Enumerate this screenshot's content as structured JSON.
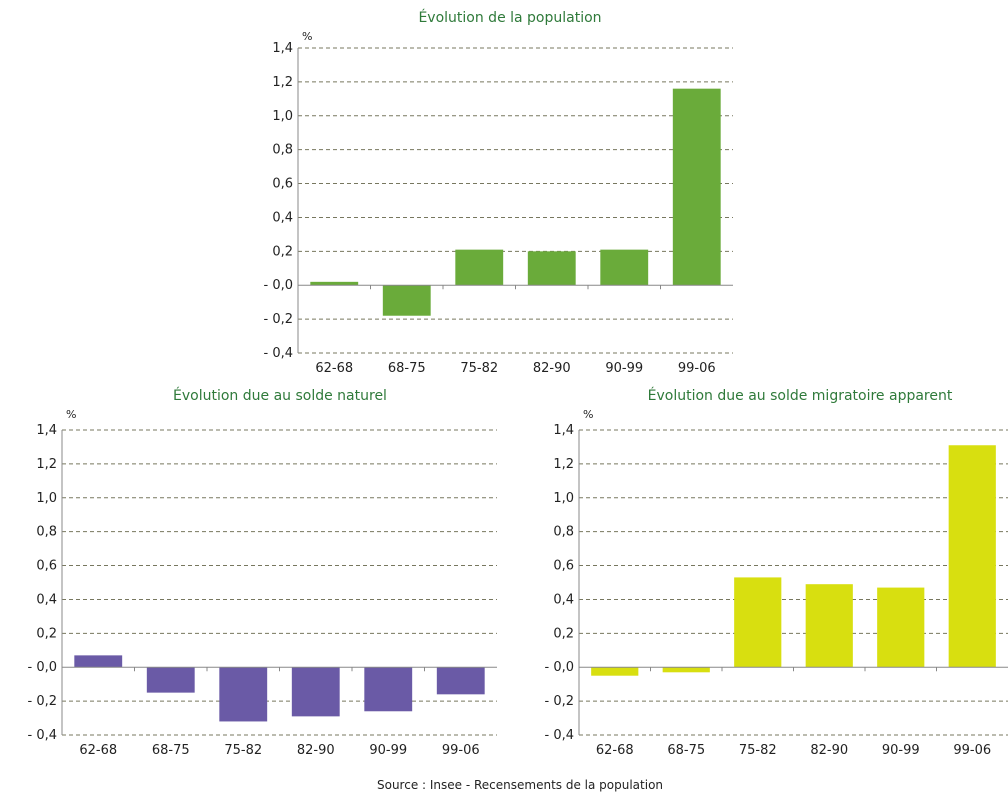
{
  "source": "Source : Insee - Recensements de la population",
  "unit_label": "%",
  "chart_data": [
    {
      "type": "bar",
      "title": "Évolution  de la population",
      "categories": [
        "62-68",
        "68-75",
        "75-82",
        "82-90",
        "90-99",
        "99-06"
      ],
      "values": [
        0.02,
        -0.18,
        0.21,
        0.2,
        0.21,
        1.16
      ],
      "ylim": [
        -0.4,
        1.4
      ],
      "ytick_labels": [
        "- 0,4",
        "- 0,2",
        "- 0,0",
        "0,2",
        "0,4",
        "0,6",
        "0,8",
        "1,0",
        "1,2",
        "1,4"
      ],
      "ylabel": "%",
      "grid": true,
      "color": "#6aab3a"
    },
    {
      "type": "bar",
      "title": "Évolution  due au solde naturel",
      "categories": [
        "62-68",
        "68-75",
        "75-82",
        "82-90",
        "90-99",
        "99-06"
      ],
      "values": [
        0.07,
        -0.15,
        -0.32,
        -0.29,
        -0.26,
        -0.16
      ],
      "ylim": [
        -0.4,
        1.4
      ],
      "ytick_labels": [
        "- 0,4",
        "- 0,2",
        "- 0,0",
        "0,2",
        "0,4",
        "0,6",
        "0,8",
        "1,0",
        "1,2",
        "1,4"
      ],
      "ylabel": "%",
      "grid": true,
      "color": "#6a5aa6"
    },
    {
      "type": "bar",
      "title": "Évolution  due au solde migratoire apparent",
      "categories": [
        "62-68",
        "68-75",
        "75-82",
        "82-90",
        "90-99",
        "99-06"
      ],
      "values": [
        -0.05,
        -0.03,
        0.53,
        0.49,
        0.47,
        1.31
      ],
      "ylim": [
        -0.4,
        1.4
      ],
      "ytick_labels": [
        "- 0,4",
        "- 0,2",
        "- 0,0",
        "0,2",
        "0,4",
        "0,6",
        "0,8",
        "1,0",
        "1,2",
        "1,4"
      ],
      "ylabel": "%",
      "grid": true,
      "color": "#d8df10"
    }
  ]
}
